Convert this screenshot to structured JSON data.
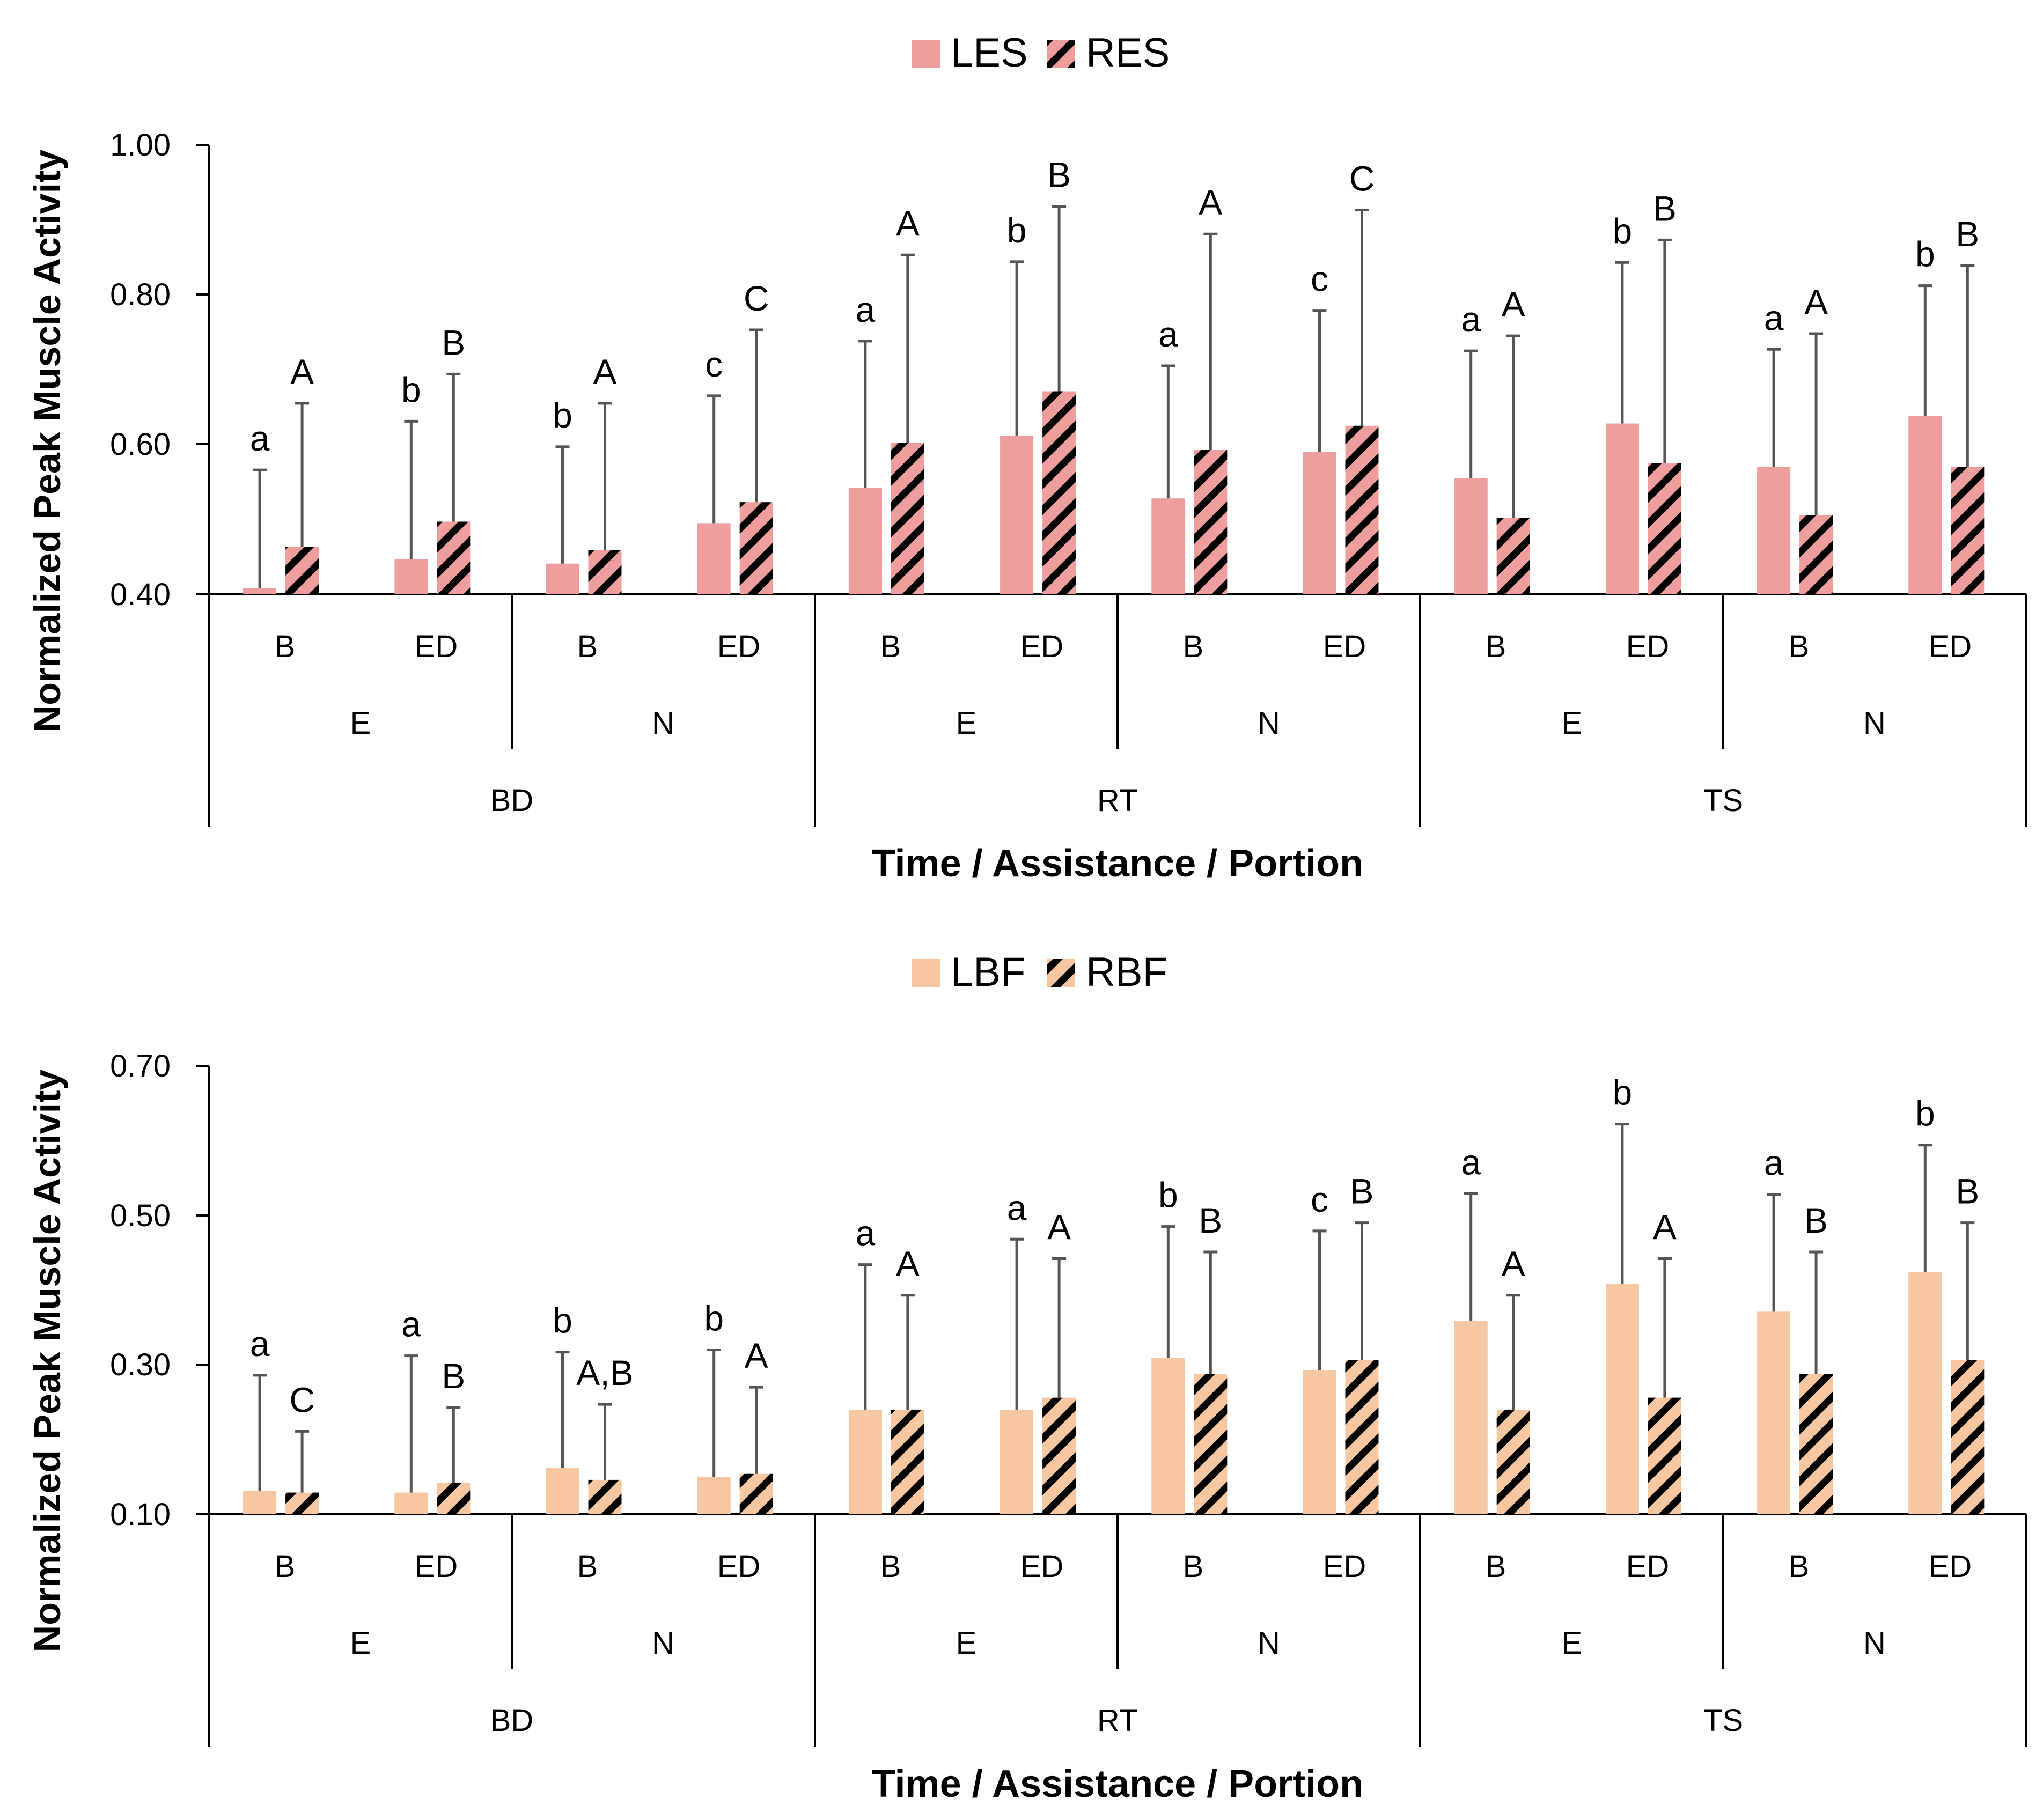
{
  "colors": {
    "es_fill": "#ee9f9d",
    "bf_fill": "#f6c7a0",
    "hatch": "#000000",
    "axis": "#000000",
    "errbar": "#555555"
  },
  "chart_data": [
    {
      "type": "bar",
      "title": "",
      "legend": [
        "LES",
        "RES"
      ],
      "legend_position": "top-center",
      "ylabel": "Normalized Peak Muscle Activity",
      "xlabel": "Time / Assistance / Portion",
      "ylim": [
        0.4,
        1.0
      ],
      "yticks": [
        "0.40",
        "0.60",
        "0.80",
        "1.00"
      ],
      "ytick_values": [
        0.4,
        0.6,
        0.8,
        1.0
      ],
      "categories": [
        "B",
        "ED",
        "B",
        "ED",
        "B",
        "ED",
        "B",
        "ED",
        "B",
        "ED",
        "B",
        "ED"
      ],
      "assistance_groups": [
        "E",
        "N",
        "E",
        "N",
        "E",
        "N"
      ],
      "time_groups": [
        "BD",
        "RT",
        "TS"
      ],
      "series": [
        {
          "name": "LES",
          "values": [
            0.408,
            0.447,
            0.441,
            0.495,
            0.542,
            0.612,
            0.528,
            0.59,
            0.555,
            0.628,
            0.57,
            0.638
          ],
          "error_upper": [
            0.566,
            0.631,
            0.597,
            0.665,
            0.738,
            0.844,
            0.705,
            0.779,
            0.725,
            0.843,
            0.727,
            0.812
          ],
          "sig_labels": [
            "a",
            "b",
            "b",
            "c",
            "a",
            "b",
            "a",
            "c",
            "a",
            "b",
            "a",
            "b"
          ]
        },
        {
          "name": "RES",
          "values": [
            0.463,
            0.497,
            0.459,
            0.523,
            0.602,
            0.671,
            0.593,
            0.625,
            0.502,
            0.575,
            0.506,
            0.57
          ],
          "error_upper": [
            0.655,
            0.694,
            0.655,
            0.753,
            0.853,
            0.918,
            0.881,
            0.913,
            0.745,
            0.873,
            0.748,
            0.839
          ],
          "sig_labels": [
            "A",
            "B",
            "A",
            "C",
            "A",
            "B",
            "A",
            "C",
            "A",
            "B",
            "A",
            "B"
          ]
        }
      ]
    },
    {
      "type": "bar",
      "title": "",
      "legend": [
        "LBF",
        "RBF"
      ],
      "legend_position": "top-center",
      "ylabel": "Normalized Peak Muscle Activity",
      "xlabel": "Time / Assistance / Portion",
      "ylim": [
        0.1,
        0.7
      ],
      "yticks": [
        "0.10",
        "0.30",
        "0.50",
        "0.70"
      ],
      "ytick_values": [
        0.1,
        0.3,
        0.5,
        0.7
      ],
      "categories": [
        "B",
        "ED",
        "B",
        "ED",
        "B",
        "ED",
        "B",
        "ED",
        "B",
        "ED",
        "B",
        "ED"
      ],
      "assistance_groups": [
        "E",
        "N",
        "E",
        "N",
        "E",
        "N"
      ],
      "time_groups": [
        "BD",
        "RT",
        "TS"
      ],
      "series": [
        {
          "name": "LBF",
          "values": [
            0.131,
            0.129,
            0.162,
            0.15,
            0.24,
            0.24,
            0.309,
            0.293,
            0.359,
            0.408,
            0.371,
            0.424
          ],
          "error_upper": [
            0.286,
            0.312,
            0.317,
            0.32,
            0.434,
            0.468,
            0.485,
            0.479,
            0.529,
            0.622,
            0.528,
            0.594
          ],
          "sig_labels": [
            "a",
            "a",
            "b",
            "b",
            "a",
            "a",
            "b",
            "c",
            "a",
            "b",
            "a",
            "b"
          ]
        },
        {
          "name": "RBF",
          "values": [
            0.129,
            0.142,
            0.146,
            0.154,
            0.24,
            0.256,
            0.288,
            0.306,
            0.24,
            0.256,
            0.288,
            0.306
          ],
          "error_upper": [
            0.211,
            0.243,
            0.247,
            0.27,
            0.393,
            0.442,
            0.451,
            0.49,
            0.393,
            0.442,
            0.451,
            0.49
          ],
          "sig_labels": [
            "C",
            "B",
            "A,B",
            "A",
            "A",
            "A",
            "B",
            "B",
            "A",
            "A",
            "B",
            "B"
          ]
        }
      ]
    }
  ]
}
